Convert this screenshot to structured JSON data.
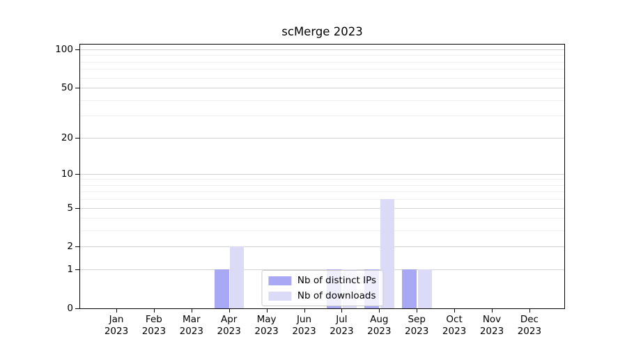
{
  "chart_data": {
    "type": "bar",
    "title": "scMerge 2023",
    "categories": [
      "Jan",
      "Feb",
      "Mar",
      "Apr",
      "May",
      "Jun",
      "Jul",
      "Aug",
      "Sep",
      "Oct",
      "Nov",
      "Dec"
    ],
    "x_tick_year": "2023",
    "series": [
      {
        "name": "Nb of distinct IPs",
        "color": "#a8a8f4",
        "values": [
          0,
          0,
          0,
          1,
          0,
          0,
          1,
          1,
          1,
          0,
          0,
          0
        ]
      },
      {
        "name": "Nb of downloads",
        "color": "#dbdbf8",
        "values": [
          0,
          0,
          0,
          2,
          0,
          0,
          1,
          6,
          1,
          0,
          0,
          0
        ]
      }
    ],
    "y_axis": {
      "scale": "log1p",
      "ticks": [
        0,
        1,
        2,
        5,
        10,
        20,
        50,
        100
      ],
      "minor_gridlines": [
        3,
        4,
        6,
        7,
        8,
        9,
        30,
        40,
        60,
        70,
        80,
        90
      ],
      "max": 100
    },
    "legend": {
      "location": "lower center"
    },
    "grid": true
  },
  "colors": {
    "major_grid": "#d2d2d2",
    "minor_grid": "#efefef",
    "axis": "#000000",
    "legend_border": "#cbcbcb",
    "legend_background": "rgba(255,255,255,0.8)"
  }
}
